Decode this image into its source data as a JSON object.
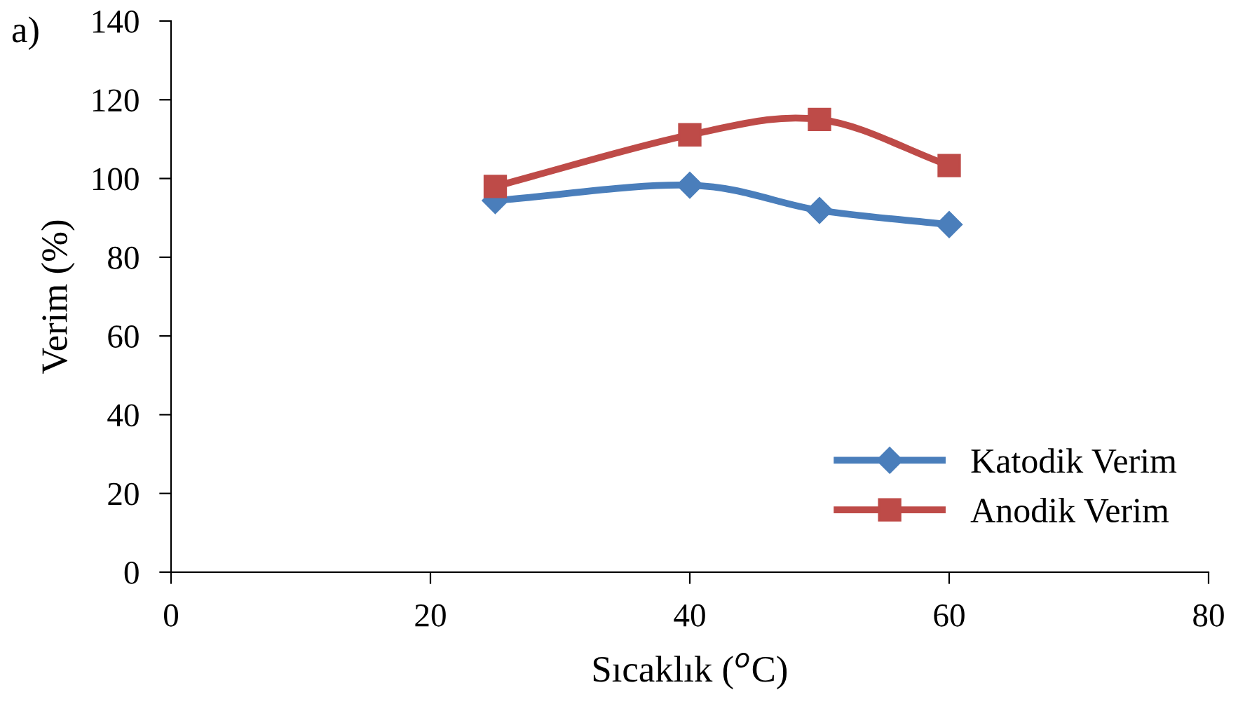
{
  "chart_data": {
    "type": "line",
    "xlabel": "Sıcaklık ($^{o}$C)",
    "ylabel": "Verim (%)",
    "annotations": [
      "a)"
    ],
    "x": [
      25,
      40,
      50,
      60
    ],
    "series": [
      {
        "name": "Katodik Verim",
        "color": "#4a7ebb",
        "marker": "diamond",
        "values": [
          94.4,
          98.3,
          91.9,
          88.3
        ]
      },
      {
        "name": "Anodik Verim",
        "color": "#be4b48",
        "marker": "square",
        "values": [
          98,
          111.1,
          115,
          103.3
        ]
      }
    ],
    "xlim": [
      0,
      80
    ],
    "xticks": [
      0,
      20,
      40,
      60,
      80
    ],
    "ylim": [
      0,
      140
    ],
    "yticks": [
      0,
      20,
      40,
      60,
      80,
      100,
      120,
      140
    ],
    "grid": false,
    "legend": "bottom right",
    "line_style": "solid"
  }
}
